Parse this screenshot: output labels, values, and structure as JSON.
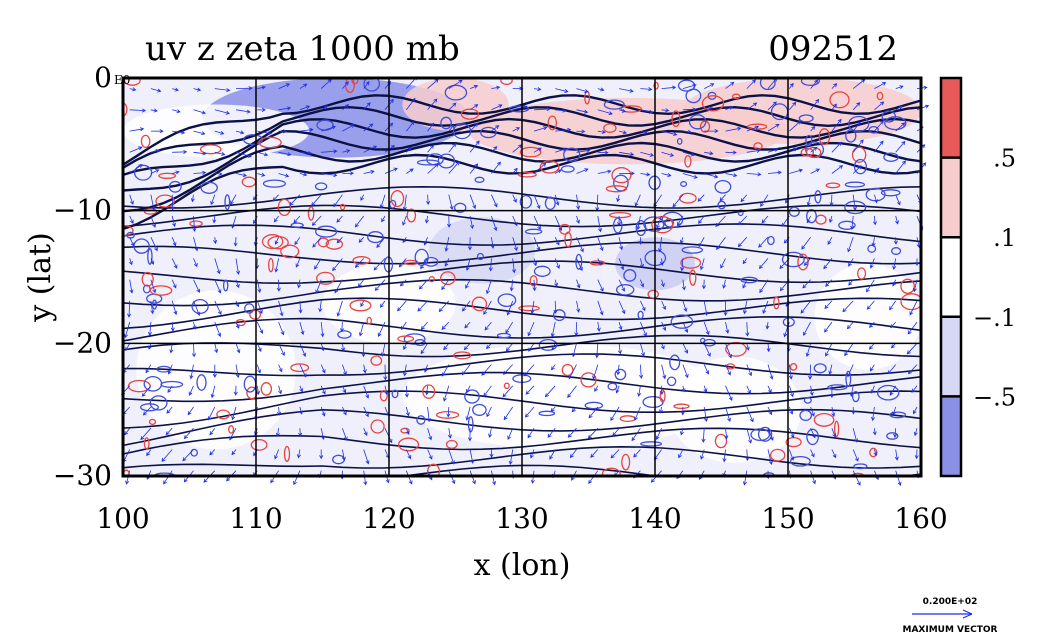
{
  "chart_data": {
    "type": "contour",
    "title": "uv z zeta 1000 mb",
    "date_label": "092512",
    "xlabel": "x (lon)",
    "ylabel": "y (lat)",
    "xlim": [
      100,
      160
    ],
    "ylim": [
      -30,
      0
    ],
    "x_ticks": [
      100,
      110,
      120,
      130,
      140,
      150,
      160
    ],
    "y_ticks": [
      0,
      -10,
      -20,
      -30
    ],
    "x_tick_labels": [
      "100",
      "110",
      "120",
      "130",
      "140",
      "150",
      "160"
    ],
    "y_tick_labels": [
      "0",
      "−10",
      "−20",
      "−30"
    ],
    "y_top_suffix": "E0",
    "grid": true,
    "series": [
      {
        "name": "zeta",
        "style": "shaded + red/blue contours"
      },
      {
        "name": "z",
        "style": "dark navy contours"
      },
      {
        "name": "uv",
        "style": "blue wind vectors"
      }
    ],
    "colorbar": {
      "placement": "right",
      "levels": [
        {
          "color": "#e85a5a"
        },
        {
          "color": "#f7cccc",
          "label": ".5"
        },
        {
          "color": "#ffffff",
          "label": ".1"
        },
        {
          "color": "#d6d8f5",
          "label": "−.1"
        },
        {
          "color": "#8a90e6",
          "label": "−.5"
        }
      ]
    },
    "max_vector": {
      "value_label": "0.200E+02",
      "caption": "MAXIMUM VECTOR"
    },
    "colors": {
      "positive": "#e8443f",
      "negative": "#3f4fd8",
      "height": "#0c1246",
      "vector": "#1f2ee6"
    }
  }
}
